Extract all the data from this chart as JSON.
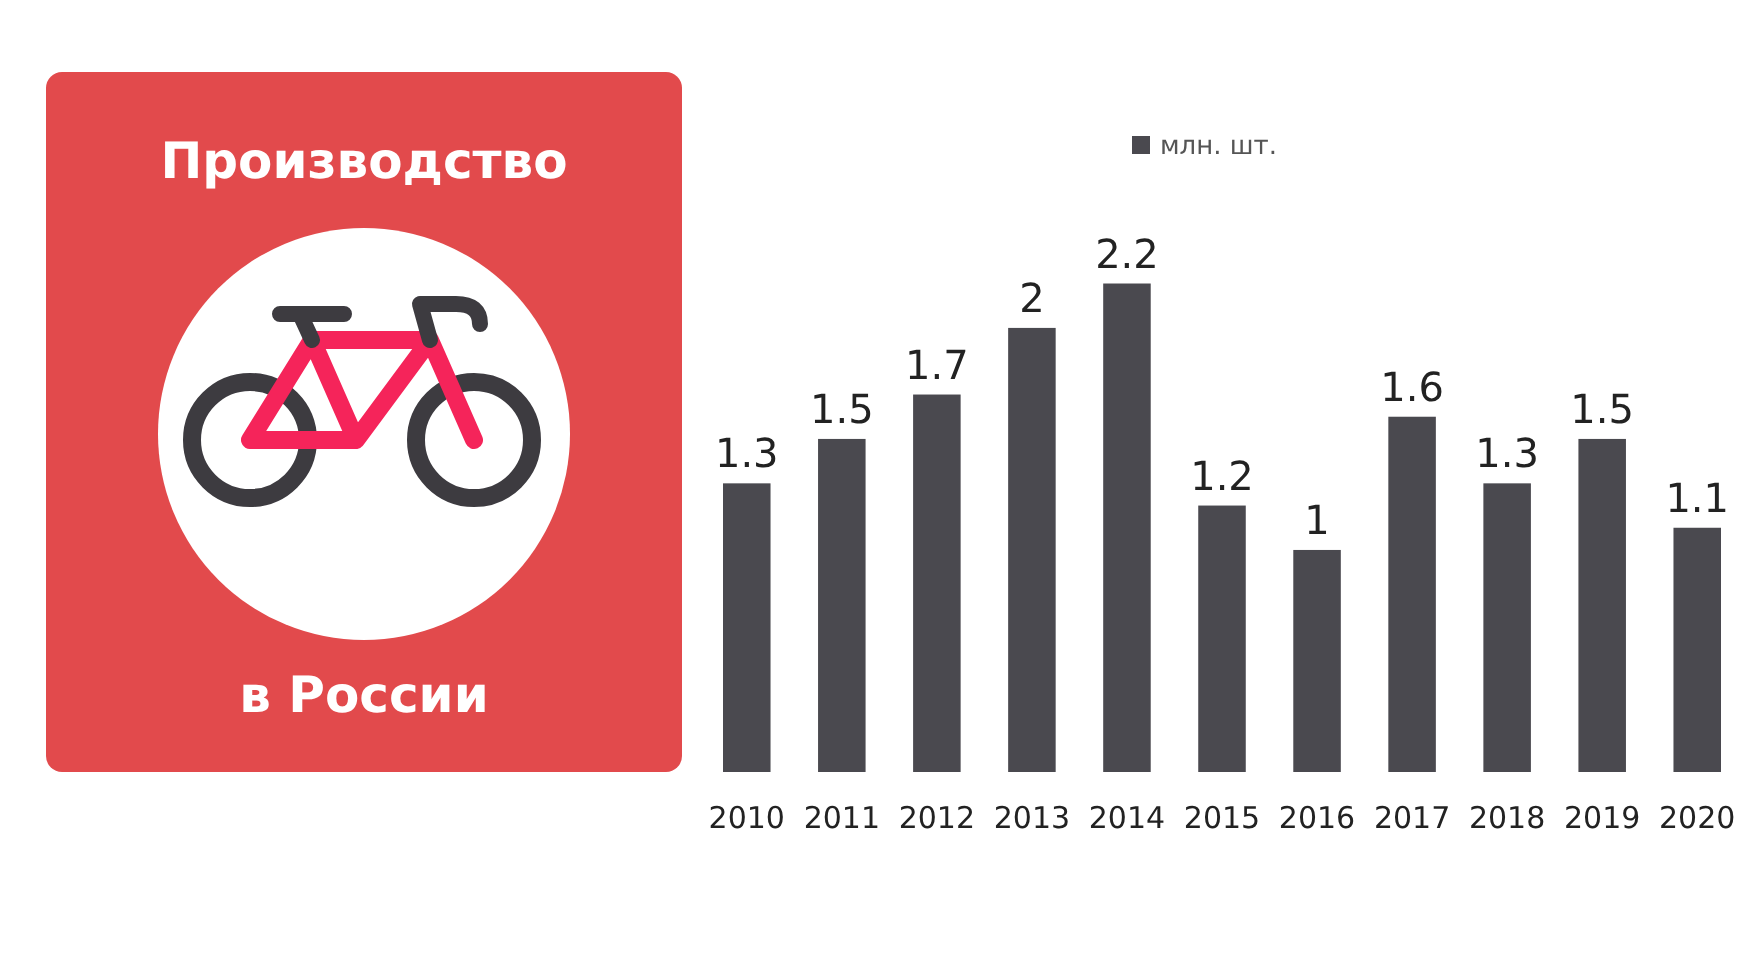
{
  "chart_data": {
    "type": "bar",
    "title": "Производство",
    "subtitle": "в России",
    "categories": [
      "2010",
      "2011",
      "2012",
      "2013",
      "2014",
      "2015",
      "2016",
      "2017",
      "2018",
      "2019",
      "2020"
    ],
    "series": [
      {
        "name": "млн. шт.",
        "color": "#4a494f",
        "values": [
          1.3,
          1.5,
          1.7,
          2,
          2.2,
          1.2,
          1,
          1.6,
          1.3,
          1.5,
          1.1
        ]
      }
    ],
    "data_labels": true,
    "legend": "top",
    "grid": false
  }
}
